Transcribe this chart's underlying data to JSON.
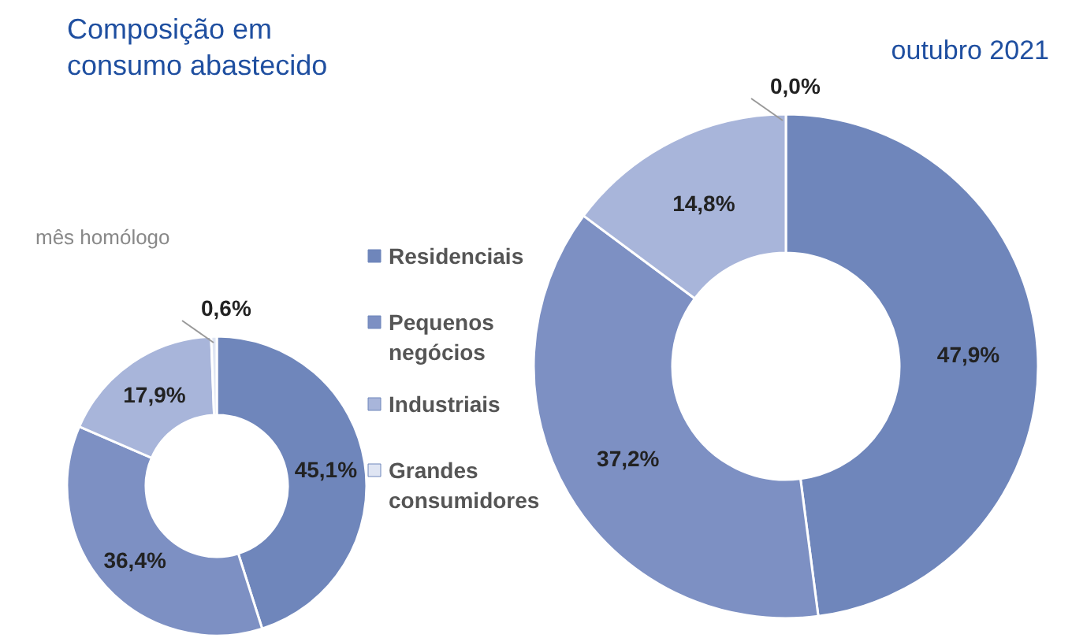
{
  "chart_data": [
    {
      "type": "donut",
      "title": "Composição em consumo abastecido",
      "subtitle": "mês homólogo",
      "categories": [
        "Residenciais",
        "Pequenos negócios",
        "Industriais",
        "Grandes consumidores"
      ],
      "values": [
        45.1,
        36.4,
        17.9,
        0.6
      ],
      "colors": [
        "#6f86bb",
        "#7d90c3",
        "#a8b5da",
        "#dfe5f3"
      ],
      "value_labels": [
        "45,1%",
        "36,4%",
        "17,9%",
        "0,6%"
      ],
      "legend": "right"
    },
    {
      "type": "donut",
      "title": "outubro 2021",
      "categories": [
        null,
        null,
        null,
        null
      ],
      "values": [
        47.9,
        37.2,
        14.8,
        0.0
      ],
      "colors": [
        "#6f86bb",
        "#7d90c3",
        "#a8b5da",
        "#dfe5f3"
      ],
      "value_labels": [
        "47,9%",
        "37,2%",
        "14,8%",
        "0,0%"
      ]
    }
  ]
}
